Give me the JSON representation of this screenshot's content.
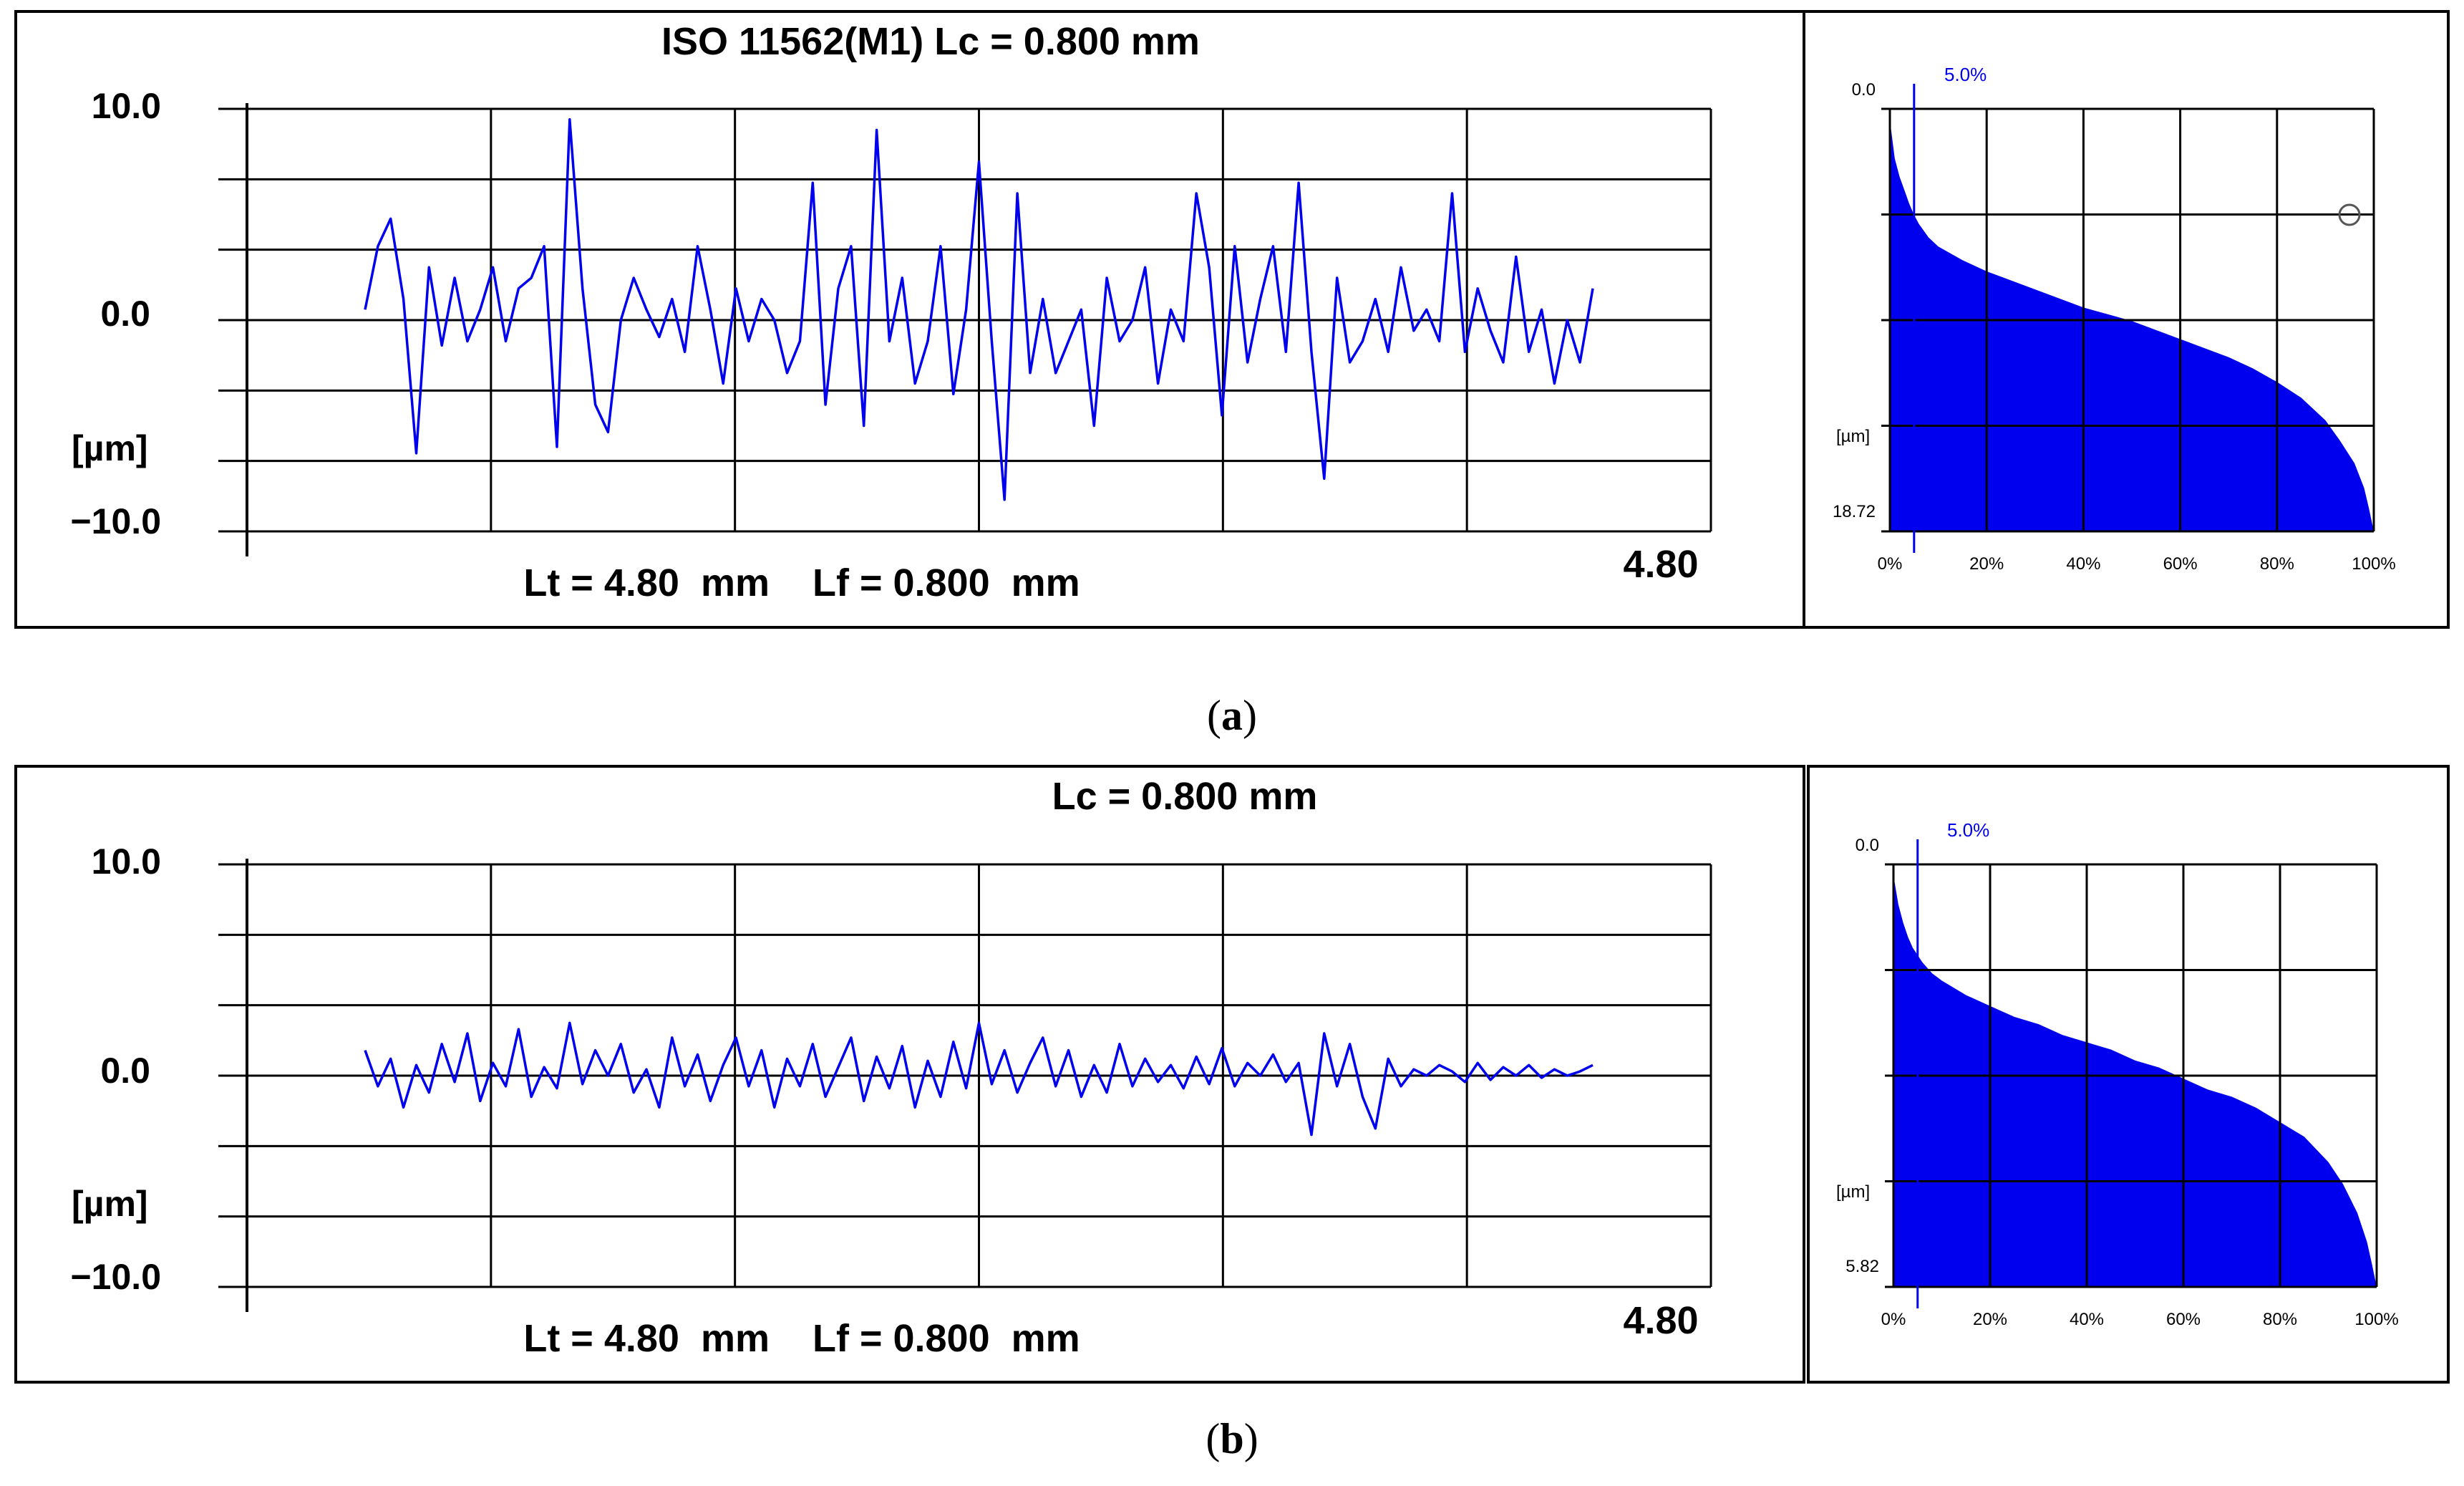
{
  "panels": [
    {
      "caption_open": "(",
      "caption_letter": "a",
      "caption_close": ")",
      "profile": {
        "title": "ISO 11562(M1)  Lc = 0.800  mm",
        "footer": "Lt = 4.80  mm    Lf = 0.800  mm",
        "x_end_label": "4.80",
        "y_ticks": [
          "10.0",
          "0.0",
          "−10.0"
        ],
        "y_unit": "[µm]"
      },
      "abbott": {
        "top_label": "0.0",
        "bottom_label": "18.72",
        "unit": "[µm]",
        "marker_label": "5.0%",
        "x_ticks": [
          "0%",
          "20%",
          "40%",
          "60%",
          "80%",
          "100%"
        ]
      }
    },
    {
      "caption_open": "(",
      "caption_letter": "b",
      "caption_close": ")",
      "profile": {
        "title": "Lc = 0.800  mm",
        "footer": "Lt = 4.80  mm    Lf = 0.800  mm",
        "x_end_label": "4.80",
        "y_ticks": [
          "10.0",
          "0.0",
          "−10.0"
        ],
        "y_unit": "[µm]"
      },
      "abbott": {
        "top_label": "0.0",
        "bottom_label": "5.82",
        "unit": "[µm]",
        "marker_label": "5.0%",
        "x_ticks": [
          "0%",
          "20%",
          "40%",
          "60%",
          "80%",
          "100%"
        ]
      }
    }
  ],
  "chart_data": [
    {
      "type": "line",
      "title": "ISO 11562(M1)  Lc = 0.800  mm",
      "xlabel": "Lt = 4.80  mm    Lf = 0.800  mm",
      "ylabel": "[µm]",
      "xlim": [
        0,
        4.8
      ],
      "ylim": [
        -10,
        10
      ],
      "grid": true,
      "color": "#0000ee",
      "series": [
        {
          "x": [
            0.0,
            0.05,
            0.1,
            0.15,
            0.2,
            0.25,
            0.3,
            0.35,
            0.4,
            0.45,
            0.5,
            0.55,
            0.6,
            0.65,
            0.7,
            0.75,
            0.8,
            0.85,
            0.9,
            0.95,
            1.0,
            1.05,
            1.1,
            1.15,
            1.2,
            1.25,
            1.3,
            1.35,
            1.4,
            1.45,
            1.5,
            1.55,
            1.6,
            1.65,
            1.7,
            1.75,
            1.8,
            1.85,
            1.9,
            1.95,
            2.0,
            2.05,
            2.1,
            2.15,
            2.2,
            2.25,
            2.3,
            2.35,
            2.4,
            2.45,
            2.5,
            2.55,
            2.6,
            2.65,
            2.7,
            2.75,
            2.8,
            2.85,
            2.9,
            2.95,
            3.0,
            3.05,
            3.1,
            3.15,
            3.2,
            3.25,
            3.3,
            3.35,
            3.4,
            3.45,
            3.5,
            3.55,
            3.6,
            3.65,
            3.7,
            3.75,
            3.8,
            3.85,
            3.9,
            3.95,
            4.0,
            4.05,
            4.1,
            4.15,
            4.2,
            4.25,
            4.3,
            4.35,
            4.4,
            4.45,
            4.5,
            4.55,
            4.6,
            4.65,
            4.7,
            4.75,
            4.8
          ],
          "y": [
            0.5,
            3.5,
            4.8,
            1.0,
            -6.3,
            2.5,
            -1.2,
            2.0,
            -1.0,
            0.5,
            2.5,
            -1.0,
            1.5,
            2.0,
            3.5,
            -6.0,
            9.5,
            1.5,
            -4.0,
            -5.3,
            0.0,
            2.0,
            0.5,
            -0.8,
            1.0,
            -1.5,
            3.5,
            0.5,
            -3.0,
            1.5,
            -1.0,
            1.0,
            0.0,
            -2.5,
            -1.0,
            6.5,
            -4.0,
            1.5,
            3.5,
            -5.0,
            9.0,
            -1.0,
            2.0,
            -3.0,
            -1.0,
            3.5,
            -3.5,
            0.5,
            7.5,
            -1.0,
            -8.5,
            6.0,
            -2.5,
            1.0,
            -2.5,
            -1.0,
            0.5,
            -5.0,
            2.0,
            -1.0,
            0.0,
            2.5,
            -3.0,
            0.5,
            -1.0,
            6.0,
            2.5,
            -4.5,
            3.5,
            -2.0,
            1.0,
            3.5,
            -1.5,
            6.5,
            -1.5,
            -7.5,
            2.0,
            -2.0,
            -1.0,
            1.0,
            -1.5,
            2.5,
            -0.5,
            0.5,
            -1.0,
            6.0,
            -1.5,
            1.5,
            -0.5,
            -2.0,
            3.0,
            -1.5,
            0.5,
            -3.0,
            0.0,
            -2.0,
            1.5
          ]
        }
      ]
    },
    {
      "type": "area",
      "ylabel": "[µm]",
      "xlim": [
        0,
        100
      ],
      "ylim": [
        0,
        18.72
      ],
      "grid": true,
      "color": "#0000ee",
      "marker_x": 5.0,
      "x": [
        0,
        1,
        2,
        3,
        4,
        5,
        6,
        8,
        10,
        15,
        20,
        25,
        30,
        35,
        40,
        45,
        50,
        55,
        60,
        65,
        70,
        75,
        80,
        85,
        90,
        93,
        96,
        98,
        99,
        100
      ],
      "y": [
        0.5,
        2.2,
        3.0,
        3.6,
        4.2,
        4.7,
        5.1,
        5.7,
        6.1,
        6.7,
        7.2,
        7.6,
        8.0,
        8.4,
        8.8,
        9.1,
        9.4,
        9.8,
        10.2,
        10.6,
        11.0,
        11.5,
        12.1,
        12.8,
        13.8,
        14.7,
        15.7,
        16.8,
        17.7,
        18.72
      ]
    },
    {
      "type": "line",
      "title": "Lc = 0.800  mm",
      "xlabel": "Lt = 4.80  mm    Lf = 0.800  mm",
      "ylabel": "[µm]",
      "xlim": [
        0,
        4.8
      ],
      "ylim": [
        -10,
        10
      ],
      "grid": true,
      "color": "#0000ee",
      "series": [
        {
          "x": [
            0.0,
            0.05,
            0.1,
            0.15,
            0.2,
            0.25,
            0.3,
            0.35,
            0.4,
            0.45,
            0.5,
            0.55,
            0.6,
            0.65,
            0.7,
            0.75,
            0.8,
            0.85,
            0.9,
            0.95,
            1.0,
            1.05,
            1.1,
            1.15,
            1.2,
            1.25,
            1.3,
            1.35,
            1.4,
            1.45,
            1.5,
            1.55,
            1.6,
            1.65,
            1.7,
            1.75,
            1.8,
            1.85,
            1.9,
            1.95,
            2.0,
            2.05,
            2.1,
            2.15,
            2.2,
            2.25,
            2.3,
            2.35,
            2.4,
            2.45,
            2.5,
            2.55,
            2.6,
            2.65,
            2.7,
            2.75,
            2.8,
            2.85,
            2.9,
            2.95,
            3.0,
            3.05,
            3.1,
            3.15,
            3.2,
            3.25,
            3.3,
            3.35,
            3.4,
            3.45,
            3.5,
            3.55,
            3.6,
            3.65,
            3.7,
            3.75,
            3.8,
            3.85,
            3.9,
            3.95,
            4.0,
            4.05,
            4.1,
            4.15,
            4.2,
            4.25,
            4.3,
            4.35,
            4.4,
            4.45,
            4.5,
            4.55,
            4.6,
            4.65,
            4.7,
            4.75,
            4.8
          ],
          "y": [
            1.2,
            -0.5,
            0.8,
            -1.5,
            0.5,
            -0.8,
            1.5,
            -0.3,
            2.0,
            -1.2,
            0.6,
            -0.5,
            2.2,
            -1.0,
            0.4,
            -0.6,
            2.5,
            -0.4,
            1.2,
            0.0,
            1.5,
            -0.8,
            0.3,
            -1.5,
            1.8,
            -0.5,
            1.0,
            -1.2,
            0.5,
            1.8,
            -0.5,
            1.2,
            -1.5,
            0.8,
            -0.5,
            1.5,
            -1.0,
            0.4,
            1.8,
            -1.2,
            0.9,
            -0.6,
            1.4,
            -1.5,
            0.7,
            -1.0,
            1.6,
            -0.6,
            2.5,
            -0.4,
            1.2,
            -0.8,
            0.6,
            1.8,
            -0.5,
            1.2,
            -1.0,
            0.5,
            -0.8,
            1.5,
            -0.5,
            0.8,
            -0.3,
            0.5,
            -0.6,
            0.9,
            -0.4,
            1.3,
            -0.5,
            0.6,
            0.0,
            1.0,
            -0.3,
            0.6,
            -2.8,
            2.0,
            -0.5,
            1.5,
            -1.0,
            -2.5,
            0.8,
            -0.5,
            0.3,
            0.0,
            0.5,
            0.2,
            -0.3,
            0.6,
            -0.2,
            0.4,
            0.0,
            0.5,
            -0.1,
            0.3,
            0.0,
            0.2,
            0.5
          ]
        }
      ]
    },
    {
      "type": "area",
      "ylabel": "[µm]",
      "xlim": [
        0,
        100
      ],
      "ylim": [
        0,
        5.82
      ],
      "grid": true,
      "color": "#0000ee",
      "marker_x": 5.0,
      "x": [
        0,
        1,
        2,
        3,
        4,
        5,
        6,
        8,
        10,
        15,
        20,
        25,
        30,
        35,
        40,
        45,
        50,
        55,
        60,
        65,
        70,
        75,
        80,
        85,
        90,
        93,
        96,
        98,
        99,
        100
      ],
      "y": [
        0.15,
        0.55,
        0.8,
        1.0,
        1.15,
        1.25,
        1.35,
        1.5,
        1.6,
        1.8,
        1.95,
        2.1,
        2.2,
        2.35,
        2.45,
        2.55,
        2.7,
        2.8,
        2.95,
        3.1,
        3.2,
        3.35,
        3.55,
        3.75,
        4.1,
        4.4,
        4.8,
        5.2,
        5.5,
        5.82
      ]
    }
  ]
}
